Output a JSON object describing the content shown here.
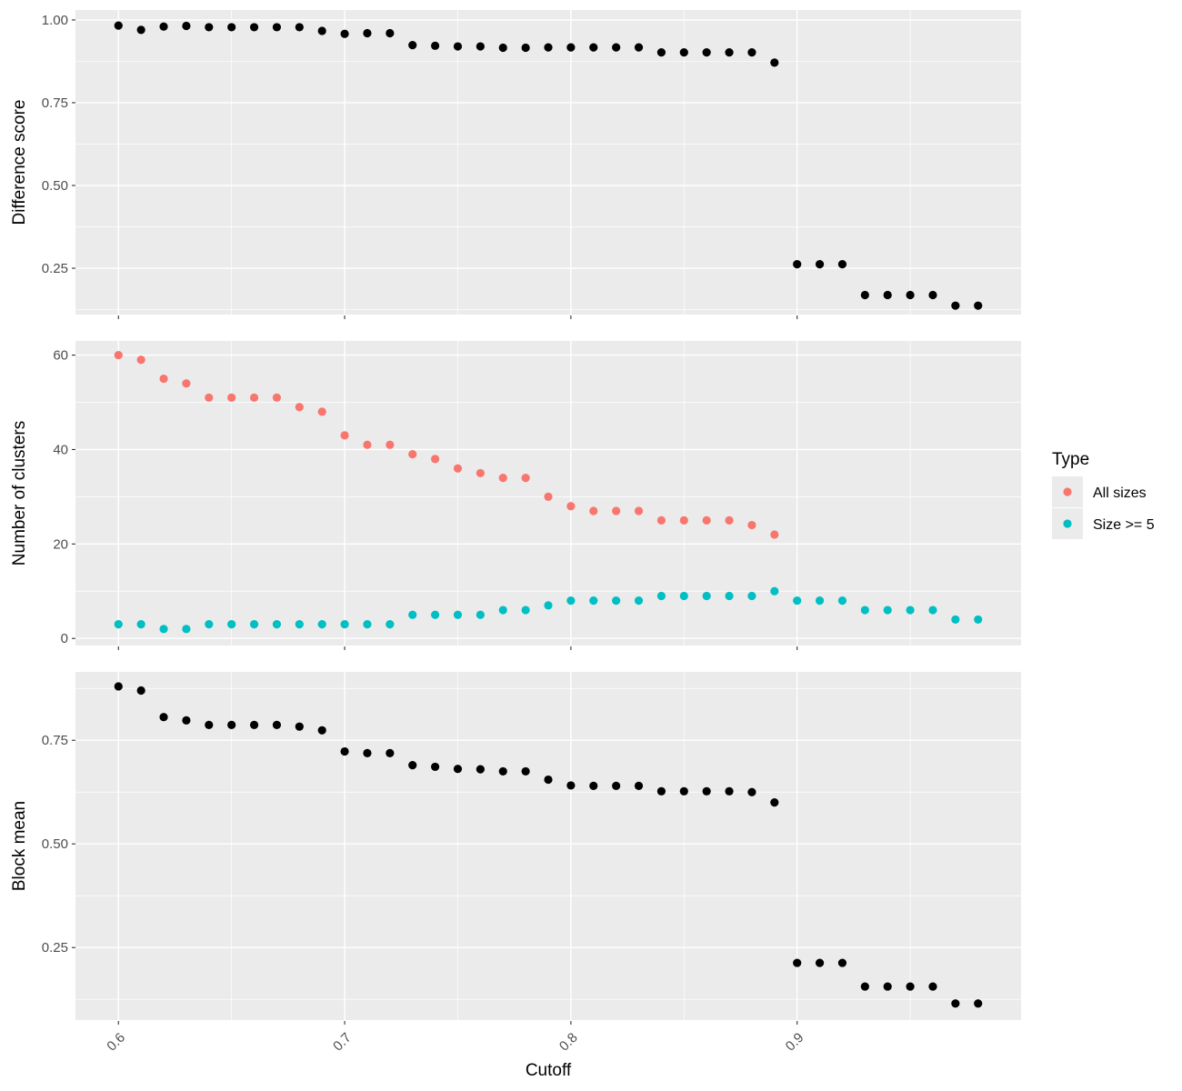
{
  "chart_data": [
    {
      "type": "scatter",
      "ylabel": "Difference score",
      "xlabel": "",
      "xlim": [
        0.581,
        0.999
      ],
      "ylim": [
        0.11,
        1.03
      ],
      "yticks": [
        0.25,
        0.5,
        0.75,
        1.0
      ],
      "ytick_labels": [
        "0.25",
        "0.50",
        "0.75",
        "1.00"
      ],
      "grid": true,
      "series": [
        {
          "color": "#000000",
          "points": [
            [
              0.6,
              0.983
            ],
            [
              0.61,
              0.97
            ],
            [
              0.62,
              0.98
            ],
            [
              0.63,
              0.982
            ],
            [
              0.64,
              0.978
            ],
            [
              0.65,
              0.978
            ],
            [
              0.66,
              0.978
            ],
            [
              0.67,
              0.978
            ],
            [
              0.68,
              0.978
            ],
            [
              0.69,
              0.967
            ],
            [
              0.7,
              0.958
            ],
            [
              0.71,
              0.96
            ],
            [
              0.72,
              0.96
            ],
            [
              0.73,
              0.924
            ],
            [
              0.74,
              0.922
            ],
            [
              0.75,
              0.92
            ],
            [
              0.76,
              0.92
            ],
            [
              0.77,
              0.916
            ],
            [
              0.78,
              0.916
            ],
            [
              0.79,
              0.917
            ],
            [
              0.8,
              0.917
            ],
            [
              0.81,
              0.917
            ],
            [
              0.82,
              0.917
            ],
            [
              0.83,
              0.917
            ],
            [
              0.84,
              0.902
            ],
            [
              0.85,
              0.902
            ],
            [
              0.86,
              0.902
            ],
            [
              0.87,
              0.902
            ],
            [
              0.88,
              0.902
            ],
            [
              0.89,
              0.871
            ],
            [
              0.9,
              0.262
            ],
            [
              0.91,
              0.262
            ],
            [
              0.92,
              0.262
            ],
            [
              0.93,
              0.169
            ],
            [
              0.94,
              0.169
            ],
            [
              0.95,
              0.169
            ],
            [
              0.96,
              0.169
            ],
            [
              0.97,
              0.137
            ],
            [
              0.98,
              0.137
            ]
          ]
        }
      ]
    },
    {
      "type": "scatter",
      "ylabel": "Number of clusters",
      "xlabel": "",
      "xlim": [
        0.581,
        0.999
      ],
      "ylim": [
        -1.5,
        63
      ],
      "yticks": [
        0,
        20,
        40,
        60
      ],
      "ytick_labels": [
        "0",
        "20",
        "40",
        "60"
      ],
      "grid": true,
      "legend": {
        "title": "Type",
        "position": "right",
        "entries": [
          "All sizes",
          "Size >= 5"
        ]
      },
      "series": [
        {
          "name": "All sizes",
          "color": "#F8766D",
          "points": [
            [
              0.6,
              60
            ],
            [
              0.61,
              59
            ],
            [
              0.62,
              55
            ],
            [
              0.63,
              54
            ],
            [
              0.64,
              51
            ],
            [
              0.65,
              51
            ],
            [
              0.66,
              51
            ],
            [
              0.67,
              51
            ],
            [
              0.68,
              49
            ],
            [
              0.69,
              48
            ],
            [
              0.7,
              43
            ],
            [
              0.71,
              41
            ],
            [
              0.72,
              41
            ],
            [
              0.73,
              39
            ],
            [
              0.74,
              38
            ],
            [
              0.75,
              36
            ],
            [
              0.76,
              35
            ],
            [
              0.77,
              34
            ],
            [
              0.78,
              34
            ],
            [
              0.79,
              30
            ],
            [
              0.8,
              28
            ],
            [
              0.81,
              27
            ],
            [
              0.82,
              27
            ],
            [
              0.83,
              27
            ],
            [
              0.84,
              25
            ],
            [
              0.85,
              25
            ],
            [
              0.86,
              25
            ],
            [
              0.87,
              25
            ],
            [
              0.88,
              24
            ],
            [
              0.89,
              22
            ]
          ]
        },
        {
          "name": "Size >= 5",
          "color": "#00BFC4",
          "points": [
            [
              0.6,
              3
            ],
            [
              0.61,
              3
            ],
            [
              0.62,
              2
            ],
            [
              0.63,
              2
            ],
            [
              0.64,
              3
            ],
            [
              0.65,
              3
            ],
            [
              0.66,
              3
            ],
            [
              0.67,
              3
            ],
            [
              0.68,
              3
            ],
            [
              0.69,
              3
            ],
            [
              0.7,
              3
            ],
            [
              0.71,
              3
            ],
            [
              0.72,
              3
            ],
            [
              0.73,
              5
            ],
            [
              0.74,
              5
            ],
            [
              0.75,
              5
            ],
            [
              0.76,
              5
            ],
            [
              0.77,
              6
            ],
            [
              0.78,
              6
            ],
            [
              0.79,
              7
            ],
            [
              0.8,
              8
            ],
            [
              0.81,
              8
            ],
            [
              0.82,
              8
            ],
            [
              0.83,
              8
            ],
            [
              0.84,
              9
            ],
            [
              0.85,
              9
            ],
            [
              0.86,
              9
            ],
            [
              0.87,
              9
            ],
            [
              0.88,
              9
            ],
            [
              0.89,
              10
            ],
            [
              0.9,
              8
            ],
            [
              0.91,
              8
            ],
            [
              0.92,
              8
            ],
            [
              0.93,
              6
            ],
            [
              0.94,
              6
            ],
            [
              0.95,
              6
            ],
            [
              0.96,
              6
            ],
            [
              0.97,
              4
            ],
            [
              0.98,
              4
            ]
          ]
        }
      ]
    },
    {
      "type": "scatter",
      "ylabel": "Block mean",
      "xlabel": "Cutoff",
      "xlim": [
        0.581,
        0.999
      ],
      "ylim": [
        0.075,
        0.915
      ],
      "yticks": [
        0.25,
        0.5,
        0.75
      ],
      "ytick_labels": [
        "0.25",
        "0.50",
        "0.75"
      ],
      "xticks": [
        0.6,
        0.7,
        0.8,
        0.9
      ],
      "xtick_labels": [
        "0.6",
        "0.7",
        "0.8",
        "0.9"
      ],
      "grid": true,
      "series": [
        {
          "color": "#000000",
          "points": [
            [
              0.6,
              0.88
            ],
            [
              0.61,
              0.87
            ],
            [
              0.62,
              0.806
            ],
            [
              0.63,
              0.798
            ],
            [
              0.64,
              0.787
            ],
            [
              0.65,
              0.787
            ],
            [
              0.66,
              0.787
            ],
            [
              0.67,
              0.787
            ],
            [
              0.68,
              0.783
            ],
            [
              0.69,
              0.774
            ],
            [
              0.7,
              0.723
            ],
            [
              0.71,
              0.719
            ],
            [
              0.72,
              0.719
            ],
            [
              0.73,
              0.69
            ],
            [
              0.74,
              0.686
            ],
            [
              0.75,
              0.681
            ],
            [
              0.76,
              0.68
            ],
            [
              0.77,
              0.675
            ],
            [
              0.78,
              0.675
            ],
            [
              0.79,
              0.655
            ],
            [
              0.8,
              0.641
            ],
            [
              0.81,
              0.64
            ],
            [
              0.82,
              0.64
            ],
            [
              0.83,
              0.64
            ],
            [
              0.84,
              0.627
            ],
            [
              0.85,
              0.627
            ],
            [
              0.86,
              0.627
            ],
            [
              0.87,
              0.627
            ],
            [
              0.88,
              0.625
            ],
            [
              0.89,
              0.6
            ],
            [
              0.9,
              0.213
            ],
            [
              0.91,
              0.213
            ],
            [
              0.92,
              0.213
            ],
            [
              0.93,
              0.156
            ],
            [
              0.94,
              0.156
            ],
            [
              0.95,
              0.156
            ],
            [
              0.96,
              0.156
            ],
            [
              0.97,
              0.115
            ],
            [
              0.98,
              0.115
            ]
          ]
        }
      ]
    }
  ]
}
